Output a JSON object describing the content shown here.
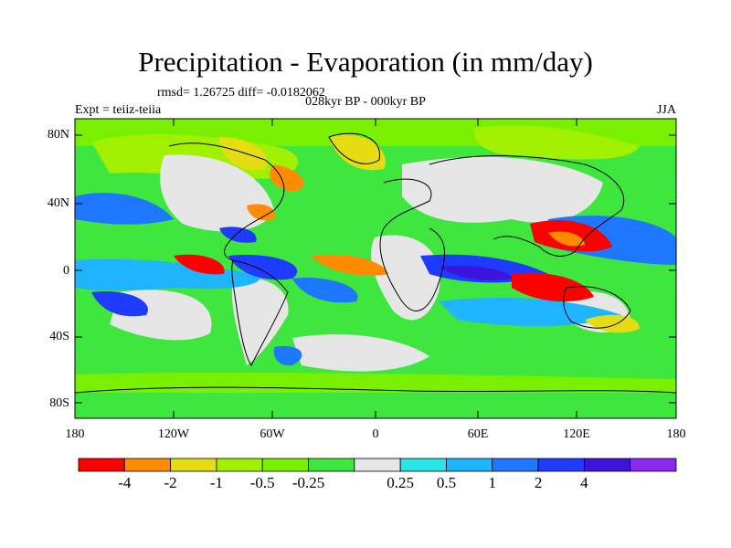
{
  "title": "Precipitation - Evaporation (in mm/day)",
  "stats": "rmsd= 1.26725  diff= -0.0182062",
  "period": "028kyr BP - 000kyr BP",
  "experiment": "Expt = teiiz-teiia",
  "season": "JJA",
  "lat_labels": [
    "80N",
    "40N",
    "0",
    "40S",
    "80S"
  ],
  "lon_labels": [
    "180",
    "120W",
    "60W",
    "0",
    "60E",
    "120E",
    "180"
  ],
  "colorbar": {
    "colors": [
      "#ff0000",
      "#ff8c00",
      "#e6dc14",
      "#a0f000",
      "#78f000",
      "#3ee63e",
      "#e6e6e6",
      "#28e6e6",
      "#1eb4ff",
      "#1e78ff",
      "#1e3cff",
      "#3c14dc",
      "#8c28f0"
    ],
    "labels": [
      "-4",
      "-2",
      "-1",
      "-0.5",
      "-0.25",
      "0.25",
      "0.5",
      "1",
      "2",
      "4"
    ]
  },
  "palette": {
    "neutral": "#e6e6e6",
    "green": "#3ee63e",
    "lgreen": "#78f000",
    "lime": "#a0f000",
    "yellow": "#e6dc14",
    "orange": "#ff8c00",
    "red": "#ff0000",
    "cyan": "#28e6e6",
    "sky": "#1eb4ff",
    "blue": "#1e78ff",
    "dblue": "#1e3cff",
    "navy": "#3c14dc",
    "purple": "#8c28f0"
  }
}
